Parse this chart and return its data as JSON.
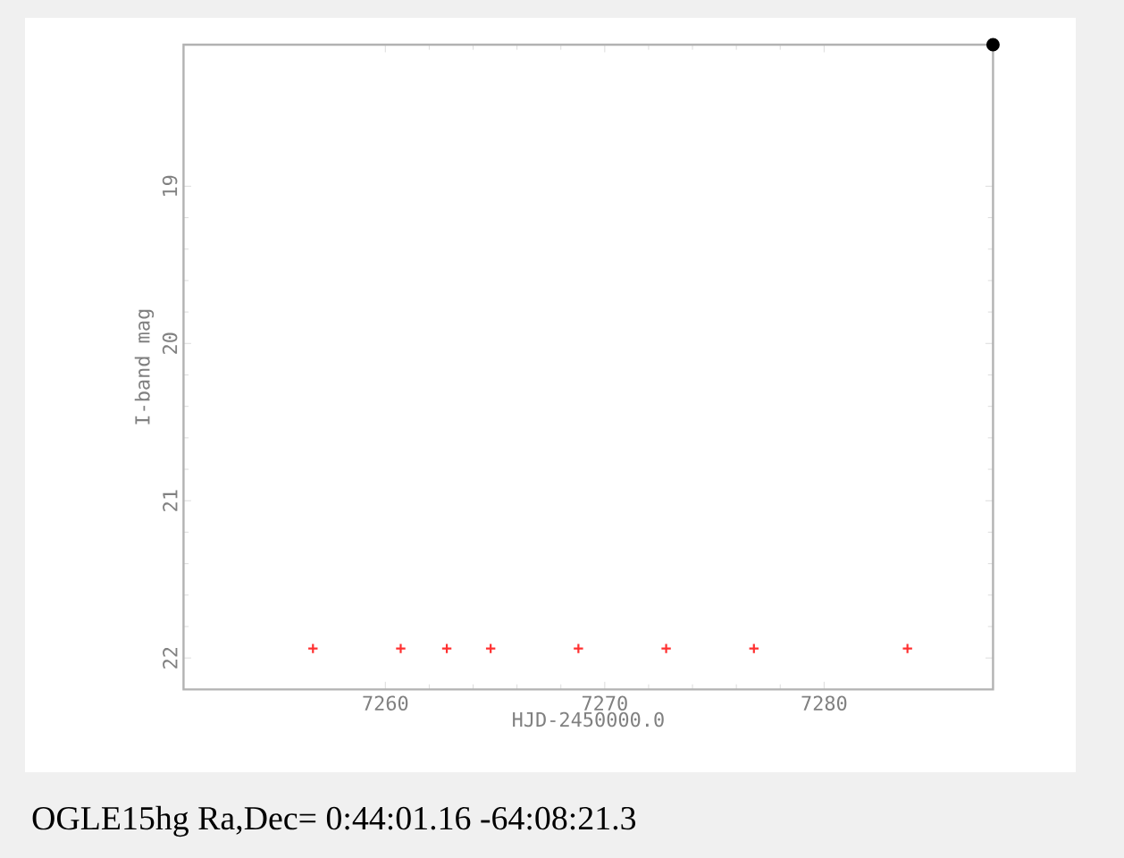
{
  "chart_data": {
    "type": "scatter",
    "title": "OGLE15hg Ra,Dec= 0:44:01.16 -64:08:21.3",
    "xlabel": "HJD-2450000.0",
    "ylabel": "I-band mag",
    "xlim": [
      7250.8,
      7287.7
    ],
    "ylim": [
      22.2,
      18.1
    ],
    "xticks": [
      7260,
      7270,
      7280
    ],
    "yticks": [
      19,
      20,
      21,
      22
    ],
    "grid": false,
    "marker": "cross",
    "series": [
      {
        "color": "#ff3030",
        "x": [
          7256.7,
          7260.7,
          7262.8,
          7264.8,
          7268.8,
          7272.8,
          7276.8,
          7283.8
        ],
        "values": [
          21.94,
          21.94,
          21.94,
          21.94,
          21.94,
          21.94,
          21.94,
          21.94
        ]
      },
      {
        "color": "#000000",
        "marker": "circle",
        "x": [
          7287.7
        ],
        "values": [
          18.1
        ]
      }
    ]
  }
}
